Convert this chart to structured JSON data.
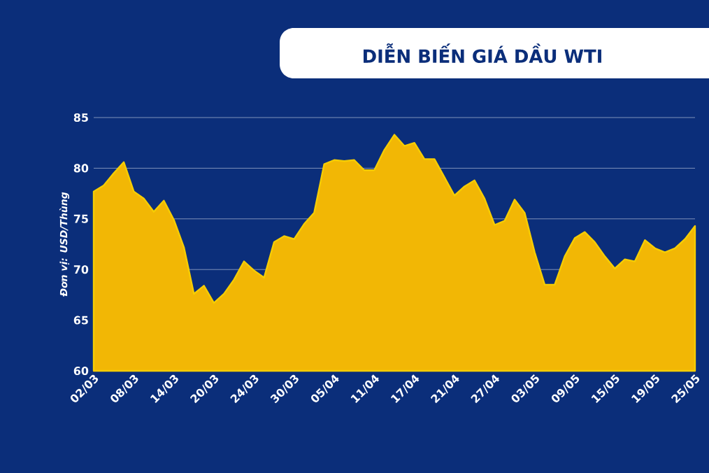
{
  "chart_data": {
    "type": "area",
    "title": "DIỄN BIẾN GIÁ DẦU WTI",
    "ylabel": "Đơn vị: USD/Thùng",
    "categories": [
      "02/03",
      null,
      null,
      null,
      "08/03",
      null,
      null,
      null,
      "14/03",
      null,
      null,
      null,
      "20/03",
      null,
      null,
      null,
      "24/03",
      null,
      null,
      null,
      "30/03",
      null,
      null,
      null,
      "05/04",
      null,
      null,
      null,
      "11/04",
      null,
      null,
      null,
      "17/04",
      null,
      null,
      null,
      "21/04",
      null,
      null,
      null,
      "27/04",
      null,
      null,
      null,
      "03/05",
      null,
      null,
      null,
      "09/05",
      null,
      null,
      null,
      "15/05",
      null,
      null,
      null,
      "19/05",
      null,
      null,
      null,
      "25/05"
    ],
    "values": [
      77.7,
      78.3,
      79.5,
      80.6,
      77.7,
      77.0,
      75.7,
      76.8,
      74.9,
      72.2,
      67.6,
      68.4,
      66.7,
      67.6,
      69.0,
      70.8,
      69.9,
      69.2,
      72.7,
      73.3,
      73.0,
      74.5,
      75.6,
      80.4,
      80.8,
      80.7,
      80.8,
      79.8,
      79.8,
      81.8,
      83.3,
      82.2,
      82.5,
      80.9,
      80.9,
      79.1,
      77.3,
      78.2,
      78.8,
      77.0,
      74.4,
      74.8,
      76.9,
      75.6,
      71.7,
      68.5,
      68.5,
      71.3,
      73.1,
      73.7,
      72.7,
      71.3,
      70.1,
      71.0,
      70.8,
      72.9,
      72.1,
      71.7,
      72.1,
      73.0,
      74.3
    ],
    "color": "#f2b705",
    "ylim": [
      60,
      85
    ],
    "yticks": [
      60,
      65,
      70,
      75,
      80,
      85
    ],
    "grid": "y"
  }
}
